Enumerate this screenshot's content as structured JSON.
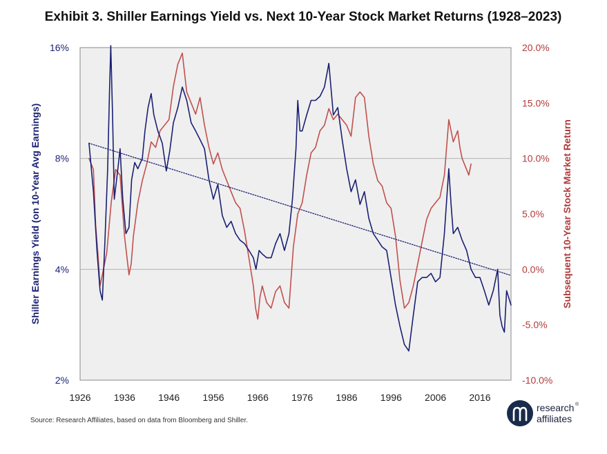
{
  "colors": {
    "yield": "#1a1f71",
    "returns": "#c0504d",
    "trend": "#1a1f71",
    "plot_bg": "#efefef",
    "grid": "#aaaaaa",
    "logo": "#1a2a4a"
  },
  "source": "Source: Research Affiliates, based on data from Bloomberg and Shiller.",
  "logo": {
    "line1": "research",
    "line2": "affiliates",
    "mark": "®"
  },
  "chart_data": {
    "type": "line",
    "title": "Exhibit 3. Shiller Earnings Yield vs. Next 10-Year Stock Market Returns (1928–2023)",
    "xlabel": "",
    "ylabel_left": "Shiller Earnings Yield (on 10-Year Avg Earnings)",
    "ylabel_right": "Subsequent 10-Year Stock Market Return",
    "xlim": [
      1926,
      2023
    ],
    "x_ticks": [
      "1926",
      "1936",
      "1946",
      "1956",
      "1966",
      "1976",
      "1986",
      "1996",
      "2006",
      "2016"
    ],
    "y_left": {
      "scale": "log",
      "ylim": [
        2,
        16
      ],
      "ticks": [
        "2%",
        "4%",
        "8%",
        "16%"
      ]
    },
    "y_right": {
      "scale": "linear",
      "ylim": [
        -10,
        20
      ],
      "ticks": [
        "-10.0%",
        "-5.0%",
        "0.0%",
        "5.0%",
        "10.0%",
        "15.0%",
        "20.0%"
      ]
    },
    "grid": true,
    "series": [
      {
        "axis": "left",
        "unit": "%",
        "points": [
          [
            1928,
            8.8
          ],
          [
            1929,
            6.5
          ],
          [
            1929.8,
            4.5
          ],
          [
            1930.5,
            3.5
          ],
          [
            1931,
            3.3
          ],
          [
            1931.6,
            4.8
          ],
          [
            1932.2,
            7.5
          ],
          [
            1932.6,
            12
          ],
          [
            1932.9,
            16.2
          ],
          [
            1933.3,
            10.5
          ],
          [
            1933.7,
            6.2
          ],
          [
            1934.5,
            7.5
          ],
          [
            1935,
            8.5
          ],
          [
            1935.6,
            6.2
          ],
          [
            1936.3,
            5.0
          ],
          [
            1937,
            5.2
          ],
          [
            1937.6,
            7.0
          ],
          [
            1938.3,
            7.8
          ],
          [
            1939,
            7.5
          ],
          [
            1940,
            8.0
          ],
          [
            1940.6,
            9.5
          ],
          [
            1941.3,
            11.0
          ],
          [
            1942,
            12.0
          ],
          [
            1942.6,
            10.5
          ],
          [
            1943.5,
            9.5
          ],
          [
            1944.5,
            8.8
          ],
          [
            1945.4,
            7.4
          ],
          [
            1946.2,
            8.4
          ],
          [
            1947,
            10.0
          ],
          [
            1948,
            11.0
          ],
          [
            1949,
            12.5
          ],
          [
            1950,
            11.5
          ],
          [
            1951,
            10.0
          ],
          [
            1952,
            9.5
          ],
          [
            1953,
            9.0
          ],
          [
            1954,
            8.5
          ],
          [
            1955,
            7.0
          ],
          [
            1956,
            6.2
          ],
          [
            1957,
            6.8
          ],
          [
            1958,
            5.6
          ],
          [
            1959,
            5.2
          ],
          [
            1960,
            5.4
          ],
          [
            1961,
            5.0
          ],
          [
            1962,
            4.8
          ],
          [
            1963,
            4.7
          ],
          [
            1964,
            4.5
          ],
          [
            1965,
            4.3
          ],
          [
            1965.6,
            4.0
          ],
          [
            1966.3,
            4.5
          ],
          [
            1967,
            4.4
          ],
          [
            1968,
            4.3
          ],
          [
            1969,
            4.3
          ],
          [
            1970,
            4.7
          ],
          [
            1971,
            5.0
          ],
          [
            1972,
            4.5
          ],
          [
            1973,
            5.0
          ],
          [
            1973.8,
            6.2
          ],
          [
            1974.6,
            8.5
          ],
          [
            1975,
            11.5
          ],
          [
            1975.5,
            9.5
          ],
          [
            1976,
            9.5
          ],
          [
            1977,
            10.5
          ],
          [
            1978,
            11.5
          ],
          [
            1979,
            11.5
          ],
          [
            1980,
            11.8
          ],
          [
            1981,
            12.5
          ],
          [
            1982,
            14.5
          ],
          [
            1983,
            10.5
          ],
          [
            1984,
            11.0
          ],
          [
            1985,
            9.0
          ],
          [
            1986,
            7.5
          ],
          [
            1987,
            6.5
          ],
          [
            1988,
            7.0
          ],
          [
            1989,
            6.0
          ],
          [
            1990,
            6.5
          ],
          [
            1991,
            5.5
          ],
          [
            1992,
            5.0
          ],
          [
            1993,
            4.8
          ],
          [
            1994,
            4.6
          ],
          [
            1995,
            4.5
          ],
          [
            1996,
            3.8
          ],
          [
            1997,
            3.2
          ],
          [
            1998,
            2.8
          ],
          [
            1999,
            2.5
          ],
          [
            2000,
            2.4
          ],
          [
            2001,
            3.0
          ],
          [
            2002,
            3.7
          ],
          [
            2003,
            3.8
          ],
          [
            2004,
            3.8
          ],
          [
            2005,
            3.9
          ],
          [
            2006,
            3.7
          ],
          [
            2007,
            3.8
          ],
          [
            2008,
            5.0
          ],
          [
            2009,
            7.5
          ],
          [
            2009.5,
            6.0
          ],
          [
            2010,
            5.0
          ],
          [
            2011,
            5.2
          ],
          [
            2012,
            4.8
          ],
          [
            2013,
            4.5
          ],
          [
            2014,
            4.0
          ],
          [
            2015,
            3.8
          ],
          [
            2016,
            3.8
          ],
          [
            2017,
            3.5
          ],
          [
            2018,
            3.2
          ],
          [
            2019,
            3.5
          ],
          [
            2020,
            4.0
          ],
          [
            2020.5,
            3.0
          ],
          [
            2021,
            2.8
          ],
          [
            2021.5,
            2.7
          ],
          [
            2022,
            3.5
          ],
          [
            2023,
            3.2
          ]
        ]
      },
      {
        "axis": "right",
        "unit": "%",
        "points": [
          [
            1928,
            10.0
          ],
          [
            1929,
            9.0
          ],
          [
            1929.5,
            4.0
          ],
          [
            1930,
            1.5
          ],
          [
            1930.5,
            -1.5
          ],
          [
            1931,
            -0.5
          ],
          [
            1931.5,
            0.5
          ],
          [
            1932,
            1.5
          ],
          [
            1933,
            6.0
          ],
          [
            1933.5,
            7.5
          ],
          [
            1934,
            9.0
          ],
          [
            1935,
            8.5
          ],
          [
            1936,
            3.0
          ],
          [
            1937,
            -0.5
          ],
          [
            1937.5,
            0.5
          ],
          [
            1938,
            3.0
          ],
          [
            1939,
            6.0
          ],
          [
            1940,
            8.0
          ],
          [
            1941,
            9.5
          ],
          [
            1942,
            11.5
          ],
          [
            1943,
            11.0
          ],
          [
            1944,
            12.5
          ],
          [
            1945,
            13.0
          ],
          [
            1946,
            13.5
          ],
          [
            1947,
            16.5
          ],
          [
            1948,
            18.5
          ],
          [
            1949,
            19.5
          ],
          [
            1950,
            16.0
          ],
          [
            1951,
            15.0
          ],
          [
            1952,
            14.0
          ],
          [
            1953,
            15.5
          ],
          [
            1954,
            13.0
          ],
          [
            1955,
            11.0
          ],
          [
            1956,
            9.5
          ],
          [
            1957,
            10.5
          ],
          [
            1958,
            9.0
          ],
          [
            1959,
            8.0
          ],
          [
            1960,
            7.0
          ],
          [
            1961,
            6.0
          ],
          [
            1962,
            5.5
          ],
          [
            1963,
            3.5
          ],
          [
            1964,
            1.0
          ],
          [
            1965,
            -1.5
          ],
          [
            1965.5,
            -3.5
          ],
          [
            1966,
            -4.5
          ],
          [
            1966.5,
            -2.5
          ],
          [
            1967,
            -1.5
          ],
          [
            1968,
            -3.0
          ],
          [
            1969,
            -3.5
          ],
          [
            1970,
            -2.0
          ],
          [
            1971,
            -1.5
          ],
          [
            1972,
            -3.0
          ],
          [
            1973,
            -3.5
          ],
          [
            1974,
            2.0
          ],
          [
            1975,
            5.0
          ],
          [
            1976,
            6.0
          ],
          [
            1977,
            8.5
          ],
          [
            1978,
            10.5
          ],
          [
            1979,
            11.0
          ],
          [
            1980,
            12.5
          ],
          [
            1981,
            13.0
          ],
          [
            1982,
            14.5
          ],
          [
            1983,
            13.5
          ],
          [
            1984,
            14.0
          ],
          [
            1985,
            13.5
          ],
          [
            1986,
            13.0
          ],
          [
            1987,
            12.0
          ],
          [
            1988,
            15.5
          ],
          [
            1989,
            16.0
          ],
          [
            1990,
            15.5
          ],
          [
            1991,
            12.0
          ],
          [
            1992,
            9.5
          ],
          [
            1993,
            8.0
          ],
          [
            1994,
            7.5
          ],
          [
            1995,
            6.0
          ],
          [
            1996,
            5.5
          ],
          [
            1997,
            3.0
          ],
          [
            1998,
            -1.0
          ],
          [
            1999,
            -3.5
          ],
          [
            2000,
            -3.0
          ],
          [
            2001,
            -1.5
          ],
          [
            2002,
            0.5
          ],
          [
            2003,
            2.5
          ],
          [
            2004,
            4.5
          ],
          [
            2005,
            5.5
          ],
          [
            2006,
            6.0
          ],
          [
            2007,
            6.5
          ],
          [
            2008,
            8.5
          ],
          [
            2009,
            13.5
          ],
          [
            2009.5,
            12.5
          ],
          [
            2010,
            11.5
          ],
          [
            2011,
            12.5
          ],
          [
            2011.5,
            11.0
          ],
          [
            2012,
            10.0
          ],
          [
            2013,
            9.0
          ],
          [
            2013.5,
            8.5
          ],
          [
            2014,
            9.5
          ]
        ]
      },
      {
        "axis": "left",
        "unit": "%",
        "style": "dotted",
        "points": [
          [
            1928,
            8.8
          ],
          [
            2023,
            3.85
          ]
        ]
      }
    ]
  }
}
